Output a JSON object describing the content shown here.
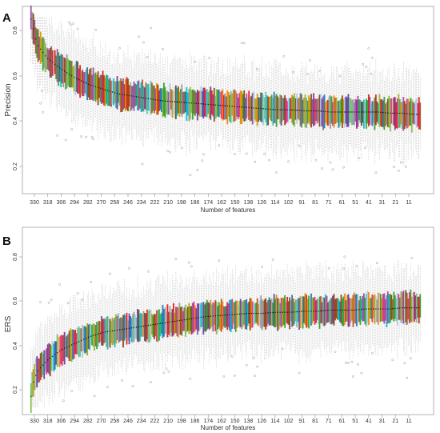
{
  "figure": {
    "panel_labels": [
      "A",
      "B"
    ]
  },
  "chart_data": [
    {
      "type": "box",
      "panel": "A",
      "xlabel": "Number of features",
      "ylabel": "Precision",
      "x_ticks": [
        "330",
        "318",
        "306",
        "294",
        "282",
        "270",
        "258",
        "246",
        "234",
        "222",
        "210",
        "198",
        "186",
        "174",
        "162",
        "150",
        "138",
        "126",
        "114",
        "102",
        "91",
        "81",
        "71",
        "61",
        "51",
        "41",
        "31",
        "21",
        "11"
      ],
      "y_ticks": [
        "0.2",
        "0.4",
        "0.6",
        "0.8"
      ],
      "ylim": [
        0.1,
        0.86
      ],
      "median_trend": {
        "x": [
          331,
          330,
          326,
          318,
          306,
          294,
          282,
          270,
          258,
          246,
          234,
          222,
          210,
          198,
          186,
          174,
          162,
          150,
          138,
          126,
          114,
          102,
          91,
          81,
          71,
          61,
          51,
          41,
          31,
          21,
          11,
          5
        ],
        "median": [
          0.85,
          0.83,
          0.74,
          0.68,
          0.63,
          0.59,
          0.56,
          0.54,
          0.52,
          0.51,
          0.5,
          0.49,
          0.485,
          0.48,
          0.475,
          0.47,
          0.465,
          0.46,
          0.455,
          0.45,
          0.45,
          0.445,
          0.445,
          0.44,
          0.44,
          0.44,
          0.44,
          0.44,
          0.435,
          0.435,
          0.43,
          0.43
        ]
      },
      "grid": false
    },
    {
      "type": "box",
      "panel": "B",
      "xlabel": "Number of features",
      "ylabel": "ERS",
      "x_ticks": [
        "330",
        "318",
        "306",
        "294",
        "282",
        "270",
        "258",
        "246",
        "234",
        "222",
        "210",
        "198",
        "186",
        "174",
        "162",
        "150",
        "138",
        "126",
        "114",
        "102",
        "91",
        "81",
        "71",
        "61",
        "51",
        "41",
        "31",
        "21",
        "11"
      ],
      "y_ticks": [
        "0.2",
        "0.4",
        "0.6",
        "0.8"
      ],
      "ylim": [
        0.12,
        0.86
      ],
      "median_trend": {
        "x": [
          331,
          330,
          326,
          318,
          306,
          294,
          282,
          270,
          258,
          246,
          234,
          222,
          210,
          198,
          186,
          174,
          162,
          150,
          138,
          126,
          114,
          102,
          91,
          81,
          71,
          61,
          51,
          41,
          31,
          21,
          11,
          5
        ],
        "median": [
          0.17,
          0.22,
          0.28,
          0.33,
          0.38,
          0.41,
          0.44,
          0.46,
          0.47,
          0.48,
          0.49,
          0.5,
          0.51,
          0.52,
          0.53,
          0.535,
          0.54,
          0.545,
          0.545,
          0.55,
          0.55,
          0.555,
          0.555,
          0.56,
          0.56,
          0.56,
          0.565,
          0.565,
          0.565,
          0.57,
          0.57,
          0.57
        ]
      },
      "grid": false
    }
  ],
  "colors": {
    "palette": [
      "#e31a1c",
      "#33a02c",
      "#1f78b4",
      "#ff7f00",
      "#6a3d9a",
      "#b15928",
      "#a6cee3",
      "#999999",
      "#e7298a",
      "#66c2a5",
      "#c0a000",
      "#2ca02c",
      "#984ea3",
      "#00bcd4",
      "#8b4513",
      "#7fbf3f"
    ],
    "whisker": "#b3b3b3",
    "median_dot": "#111111",
    "outlier": "#888888",
    "frame": "#9e9e9e",
    "label": "#333333"
  }
}
